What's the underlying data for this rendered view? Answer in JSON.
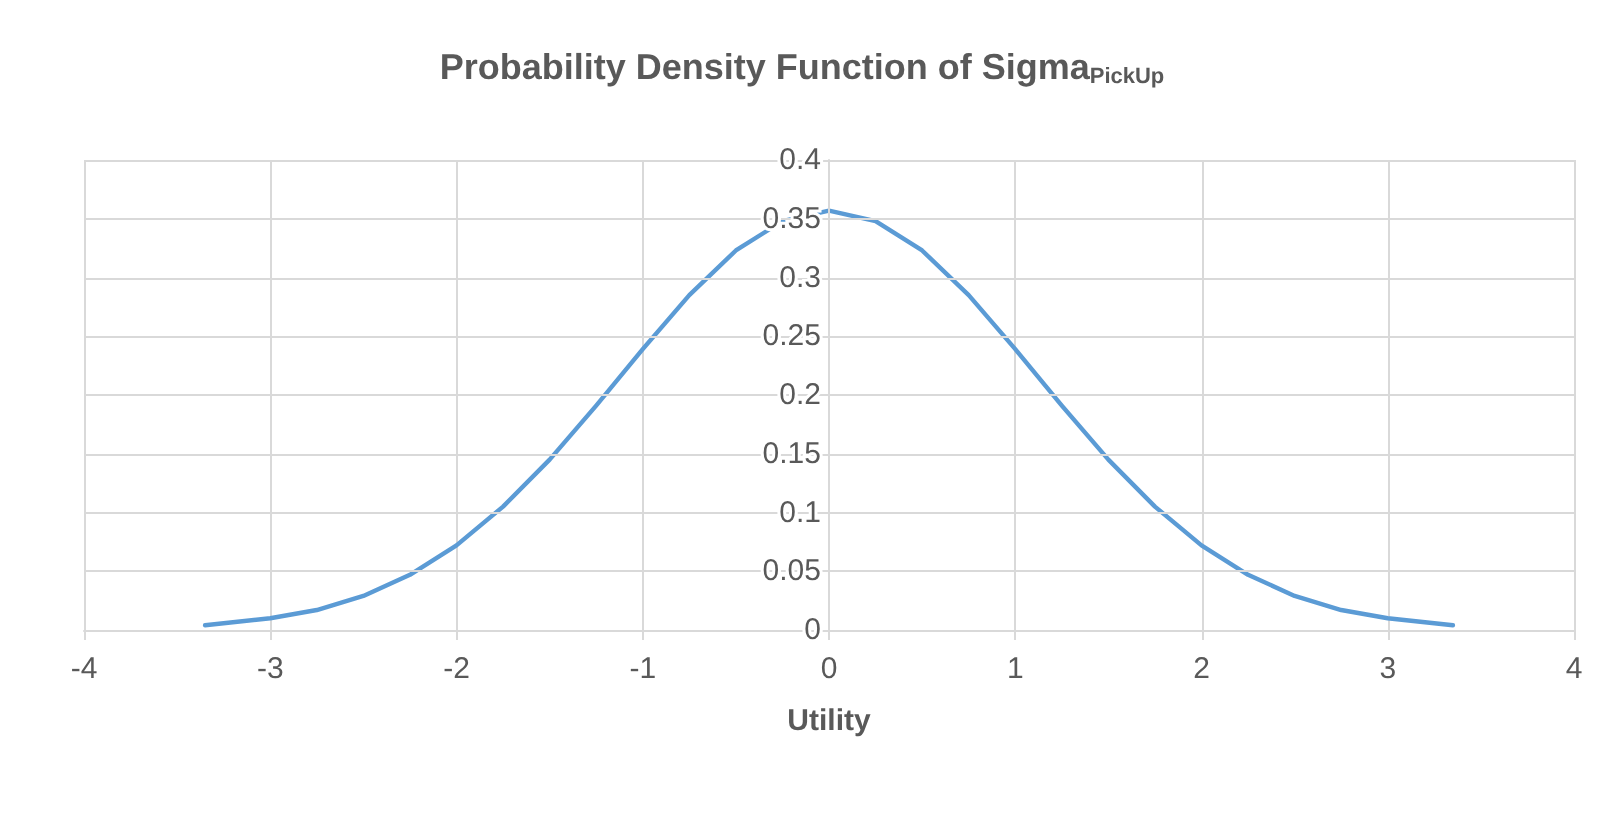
{
  "chart_data": {
    "type": "line",
    "title": "Probability Density Function of Sigma$_{PickUp}$",
    "xlabel": "Utility",
    "x": [
      -3.35,
      -3,
      -2.75,
      -2.5,
      -2.25,
      -2,
      -1.75,
      -1.5,
      -1.25,
      -1,
      -0.75,
      -0.5,
      -0.25,
      0,
      0.25,
      0.5,
      0.75,
      1,
      1.25,
      1.5,
      1.75,
      2,
      2.25,
      2.5,
      2.75,
      3,
      3.35
    ],
    "series": [
      {
        "color": "#5b9bd5",
        "values": [
          0.004,
          0.01,
          0.017,
          0.029,
          0.047,
          0.072,
          0.105,
          0.145,
          0.191,
          0.239,
          0.285,
          0.323,
          0.348,
          0.357,
          0.348,
          0.323,
          0.285,
          0.239,
          0.191,
          0.145,
          0.105,
          0.072,
          0.047,
          0.029,
          0.017,
          0.01,
          0.004
        ]
      }
    ],
    "xlim": [
      -4,
      4
    ],
    "xticks": [
      -4,
      -3,
      -2,
      -1,
      0,
      1,
      2,
      3,
      4
    ],
    "ylim": [
      0,
      0.4
    ],
    "yticks": [
      0,
      0.05,
      0.1,
      0.15,
      0.2,
      0.25,
      0.3,
      0.35,
      0.4
    ],
    "grid": true,
    "marker": "none",
    "line_style": "solid"
  }
}
